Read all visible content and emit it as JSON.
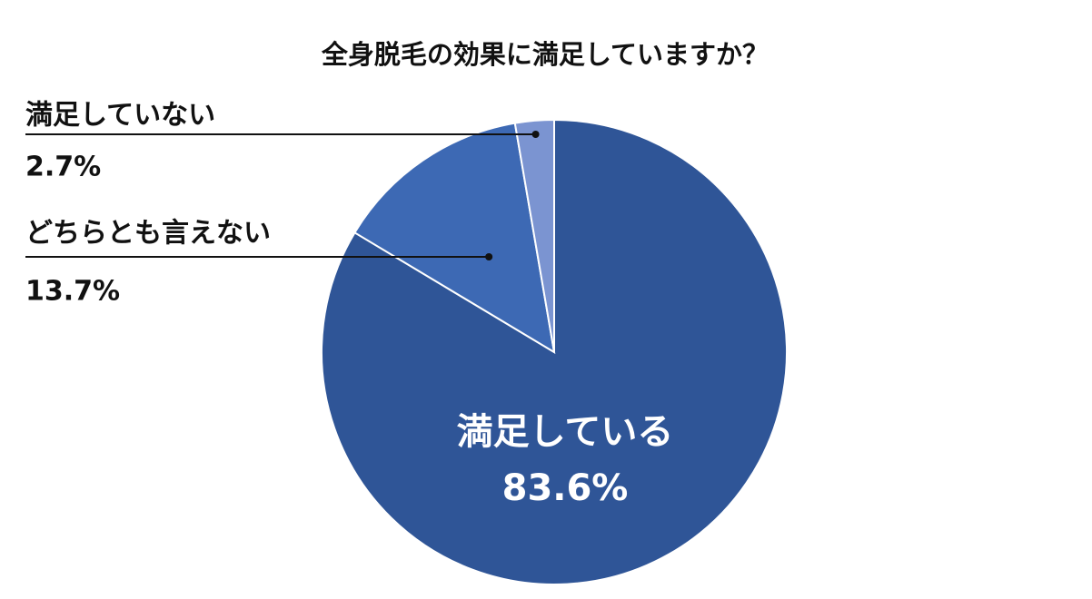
{
  "chart_data": {
    "type": "pie",
    "title": "全身脱毛の効果に満足していますか？",
    "categories": [
      "満足している",
      "どちらとも言えない",
      "満足していない"
    ],
    "values": [
      83.6,
      13.7,
      2.7
    ],
    "value_labels": [
      "83.6%",
      "13.7%",
      "2.7%"
    ],
    "colors": [
      "#2f5597",
      "#3d69b4",
      "#7b94d1"
    ]
  }
}
